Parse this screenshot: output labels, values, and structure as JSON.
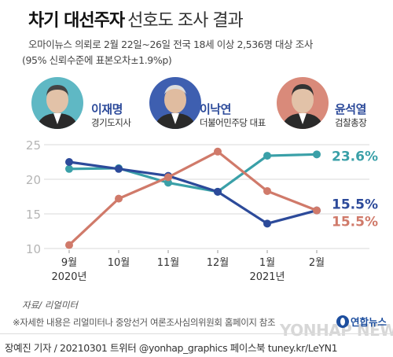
{
  "title": {
    "bold": "차기 대선주자",
    "light": "선호도 조사 결과"
  },
  "subtitle": {
    "line1": "오마이뉴스 의뢰로 2월 22일~26일 전국 18세 이상 2,536명 대상 조사",
    "line2": "(95% 신뢰수준에 표본오차±1.9%p)"
  },
  "candidates": [
    {
      "name": "이재명",
      "role": "경기도지사",
      "color": "#2c4a9a",
      "circle_color": "#5fb8c4"
    },
    {
      "name": "이낙연",
      "role": "더불어민주당 대표",
      "color": "#2c4a9a",
      "circle_color": "#3e5fb0"
    },
    {
      "name": "윤석열",
      "role": "검찰총장",
      "color": "#2c4a9a",
      "circle_color": "#d98a7a"
    }
  ],
  "chart_data": {
    "type": "line",
    "categories": [
      "9월",
      "10월",
      "11월",
      "12월",
      "1월",
      "2월"
    ],
    "year_labels": [
      {
        "index": 0,
        "label": "2020년"
      },
      {
        "index": 4,
        "label": "2021년"
      }
    ],
    "ylim": [
      10,
      25
    ],
    "yticks": [
      10,
      15,
      20,
      25
    ],
    "grid": true,
    "series": [
      {
        "name": "이재명",
        "color": "#3aa0a8",
        "values": [
          21.5,
          21.6,
          19.5,
          18.2,
          23.4,
          23.6
        ],
        "end_label": "23.6%"
      },
      {
        "name": "이낙연",
        "color": "#2c4a9a",
        "values": [
          22.5,
          21.5,
          20.5,
          18.2,
          13.6,
          15.5
        ],
        "end_label": "15.5%"
      },
      {
        "name": "윤석열",
        "color": "#d07a6a",
        "values": [
          10.5,
          17.2,
          20.3,
          24.0,
          18.3,
          15.5
        ],
        "end_label": "15.5%"
      }
    ]
  },
  "source": "자료/ 리얼미터",
  "note": "※자세한 내용은 리얼미터나 중앙선거 여론조사심의위원회 홈페이지 참조",
  "credit": "장예진 기자 / 20210301 트위터 @yonhap_graphics 페이스북 tuney.kr/LeYN1",
  "logo": "연합뉴스",
  "watermark": "YONHAP NEWS"
}
